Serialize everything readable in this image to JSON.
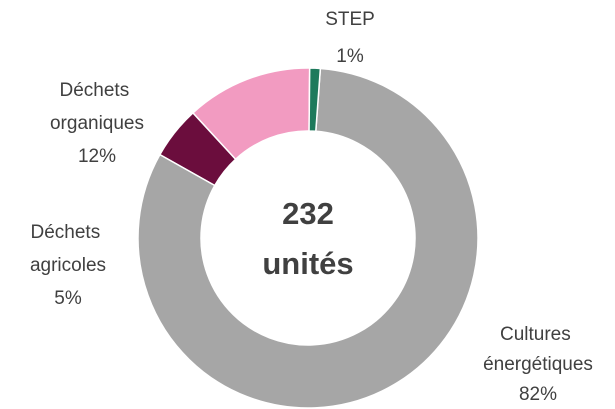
{
  "chart_data": {
    "type": "donut",
    "center_text": [
      "232",
      "unités"
    ],
    "categories": [
      "STEP",
      "Cultures énergétiques",
      "Déchets agricoles",
      "Déchets organiques"
    ],
    "values": [
      1,
      82,
      5,
      12
    ],
    "value_labels": [
      "1%",
      "82%",
      "5%",
      "12%"
    ],
    "colors": [
      "#1e7a5c",
      "#a6a6a6",
      "#6b0d3d",
      "#f29bc1"
    ]
  }
}
